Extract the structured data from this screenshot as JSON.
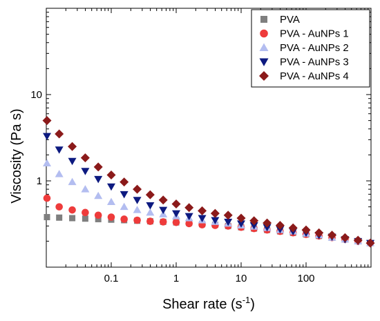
{
  "chart_data": {
    "type": "scatter",
    "title": "",
    "xlabel": "Shear rate (s",
    "xlabel_sup": "-1",
    "xlabel_close": ")",
    "ylabel": "Viscosity (Pa s)",
    "xscale": "log",
    "yscale": "log",
    "xlim": [
      0.01,
      1000
    ],
    "ylim": [
      0.1,
      100
    ],
    "x_tick_labels": [
      {
        "value": 0.1,
        "label": "0.1"
      },
      {
        "value": 1,
        "label": "1"
      },
      {
        "value": 10,
        "label": "10"
      },
      {
        "value": 100,
        "label": "100"
      }
    ],
    "y_tick_labels": [
      {
        "value": 1,
        "label": "1"
      },
      {
        "value": 10,
        "label": "10"
      }
    ],
    "grid": false,
    "legend_position": "top-right",
    "x": [
      0.01,
      0.0158,
      0.0251,
      0.0398,
      0.0631,
      0.1,
      0.158,
      0.251,
      0.398,
      0.631,
      1,
      1.58,
      2.51,
      3.98,
      6.31,
      10,
      15.8,
      25.1,
      39.8,
      63.1,
      100,
      158,
      251,
      398,
      631,
      1000
    ],
    "series": [
      {
        "name": "PVA",
        "marker": "square",
        "color": "#7f7f7f",
        "values": [
          0.38,
          0.375,
          0.37,
          0.365,
          0.36,
          0.355,
          0.35,
          0.345,
          0.34,
          0.335,
          0.33,
          0.325,
          0.315,
          0.31,
          0.3,
          0.29,
          0.28,
          0.27,
          0.26,
          0.25,
          0.24,
          0.23,
          0.22,
          0.21,
          0.2,
          0.19
        ]
      },
      {
        "name": "PVA - AuNPs 1",
        "marker": "circle",
        "color": "#ee3b3b",
        "values": [
          0.63,
          0.5,
          0.46,
          0.43,
          0.4,
          0.38,
          0.36,
          0.35,
          0.34,
          0.335,
          0.33,
          0.32,
          0.31,
          0.305,
          0.3,
          0.29,
          0.28,
          0.27,
          0.26,
          0.25,
          0.24,
          0.23,
          0.22,
          0.21,
          0.2,
          0.19
        ]
      },
      {
        "name": "PVA - AuNPs 2",
        "marker": "triangle-up",
        "color": "#b3bdf0",
        "values": [
          1.6,
          1.2,
          0.97,
          0.8,
          0.67,
          0.57,
          0.5,
          0.46,
          0.43,
          0.41,
          0.39,
          0.37,
          0.35,
          0.335,
          0.32,
          0.305,
          0.295,
          0.285,
          0.27,
          0.26,
          0.245,
          0.235,
          0.22,
          0.21,
          0.2,
          0.19
        ]
      },
      {
        "name": "PVA - AuNPs 3",
        "marker": "triangle-down",
        "color": "#0d1a80",
        "values": [
          3.3,
          2.3,
          1.7,
          1.3,
          1.05,
          0.86,
          0.7,
          0.6,
          0.52,
          0.46,
          0.42,
          0.39,
          0.37,
          0.35,
          0.335,
          0.32,
          0.305,
          0.29,
          0.275,
          0.26,
          0.25,
          0.235,
          0.225,
          0.21,
          0.2,
          0.19
        ]
      },
      {
        "name": "PVA - AuNPs 4",
        "marker": "diamond",
        "color": "#8b1a1a",
        "values": [
          5.0,
          3.5,
          2.5,
          1.85,
          1.45,
          1.17,
          0.97,
          0.8,
          0.69,
          0.6,
          0.54,
          0.49,
          0.45,
          0.42,
          0.4,
          0.37,
          0.345,
          0.325,
          0.305,
          0.285,
          0.27,
          0.25,
          0.235,
          0.22,
          0.205,
          0.19
        ]
      }
    ]
  }
}
